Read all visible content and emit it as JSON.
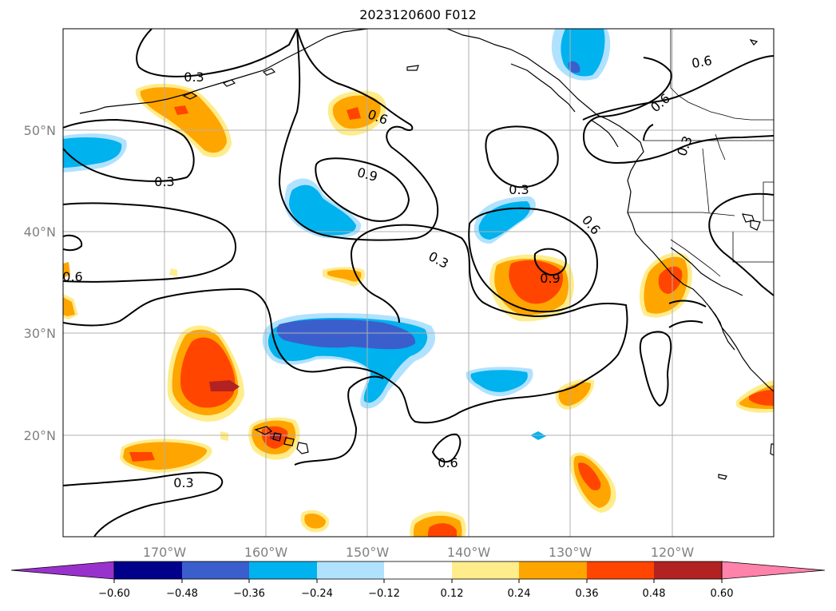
{
  "title": "2023120600 F012",
  "map": {
    "lon_range": [
      -180,
      -110
    ],
    "lat_range": [
      10,
      60
    ],
    "lat_labels": [
      "50°N",
      "40°N",
      "30°N",
      "20°N"
    ],
    "lon_labels": [
      "170°W",
      "160°W",
      "150°W",
      "140°W",
      "130°W",
      "120°W"
    ],
    "contour_labels": [
      "0.3",
      "0.3",
      "0.3",
      "0.3",
      "0.3",
      "0.6",
      "0.6",
      "0.6",
      "0.6",
      "0.6",
      "0.6",
      "0.3",
      "0.9",
      "0.9"
    ]
  },
  "colorbar": {
    "tick_labels": [
      "−0.60",
      "−0.48",
      "−0.36",
      "−0.24",
      "−0.12",
      "0.12",
      "0.24",
      "0.36",
      "0.48",
      "0.60"
    ],
    "colors": {
      "under": "#9932cc",
      "bins": [
        "#00008b",
        "#3a5fcd",
        "#00b2ee",
        "#b0e2ff",
        "#ffffff",
        "#ffec8b",
        "#ffa500",
        "#ff4500",
        "#b22222"
      ],
      "over": "#ff82ab"
    }
  }
}
